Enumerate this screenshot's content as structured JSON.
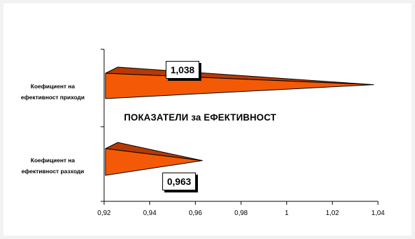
{
  "chart_data": {
    "type": "bar",
    "orientation": "horizontal",
    "style": "3d-cone",
    "title": "ПОКАЗАТЕЛИ за ЕФЕКТИВНОСТ",
    "categories": [
      [
        "Коефициент на",
        "ефективност приходи"
      ],
      [
        "Коефициент на",
        "ефективност разходи"
      ]
    ],
    "values": [
      1.038,
      0.963
    ],
    "data_labels": [
      "1,038",
      "0,963"
    ],
    "xlim": [
      0.92,
      1.04
    ],
    "x_ticks": [
      0.92,
      0.94,
      0.96,
      0.98,
      1.0,
      1.02,
      1.04
    ],
    "x_tick_labels": [
      "0,92",
      "0,94",
      "0,96",
      "0,98",
      "1",
      "1,02",
      "1,04"
    ],
    "grid": false,
    "legend": "none",
    "colors": {
      "front": "#f45a06",
      "top": "#b63a06",
      "outline": "#000000"
    }
  }
}
